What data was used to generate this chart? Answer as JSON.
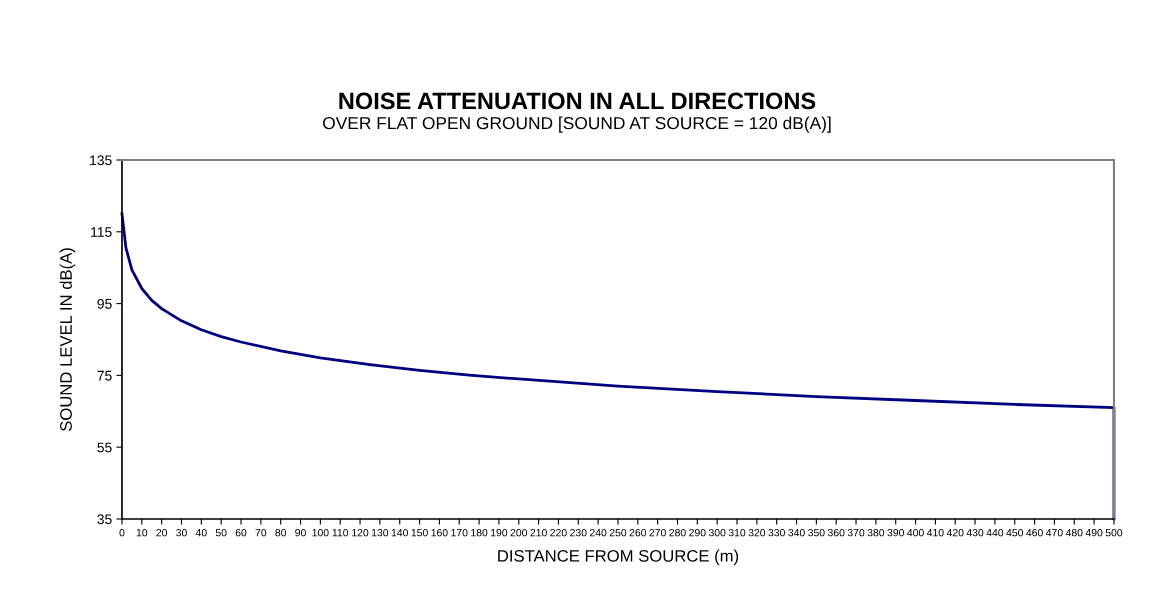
{
  "chart_data": {
    "type": "line",
    "title": "NOISE ATTENUATION IN ALL DIRECTIONS",
    "subtitle": "OVER FLAT OPEN GROUND [SOUND AT SOURCE = 120 dB(A)]",
    "xlabel": "DISTANCE FROM SOURCE (m)",
    "ylabel": "SOUND LEVEL IN dB(A)",
    "x": [
      0,
      2,
      5,
      10,
      15,
      20,
      30,
      40,
      50,
      60,
      80,
      100,
      125,
      150,
      175,
      200,
      250,
      300,
      350,
      400,
      450,
      500,
      500
    ],
    "series": [
      {
        "color": "#000080",
        "values": [
          120,
          110.5,
          104.4,
          99.2,
          95.9,
          93.6,
          90.2,
          87.7,
          85.8,
          84.3,
          81.8,
          79.9,
          78.0,
          76.4,
          75.1,
          74.0,
          72.0,
          70.5,
          69.1,
          68.0,
          66.9,
          66.0,
          35
        ]
      }
    ],
    "xlim": [
      0,
      500
    ],
    "xticks": [
      0,
      10,
      20,
      30,
      40,
      50,
      60,
      70,
      80,
      90,
      100,
      110,
      120,
      130,
      140,
      150,
      160,
      170,
      180,
      190,
      200,
      210,
      220,
      230,
      240,
      250,
      260,
      270,
      280,
      290,
      300,
      310,
      320,
      330,
      340,
      350,
      360,
      370,
      380,
      390,
      400,
      410,
      420,
      430,
      440,
      450,
      460,
      470,
      480,
      490,
      500
    ],
    "ylim": [
      35,
      135
    ],
    "yticks": [
      35,
      55,
      75,
      95,
      115,
      135
    ],
    "grid": false,
    "marker": "none",
    "line_style": "solid"
  }
}
